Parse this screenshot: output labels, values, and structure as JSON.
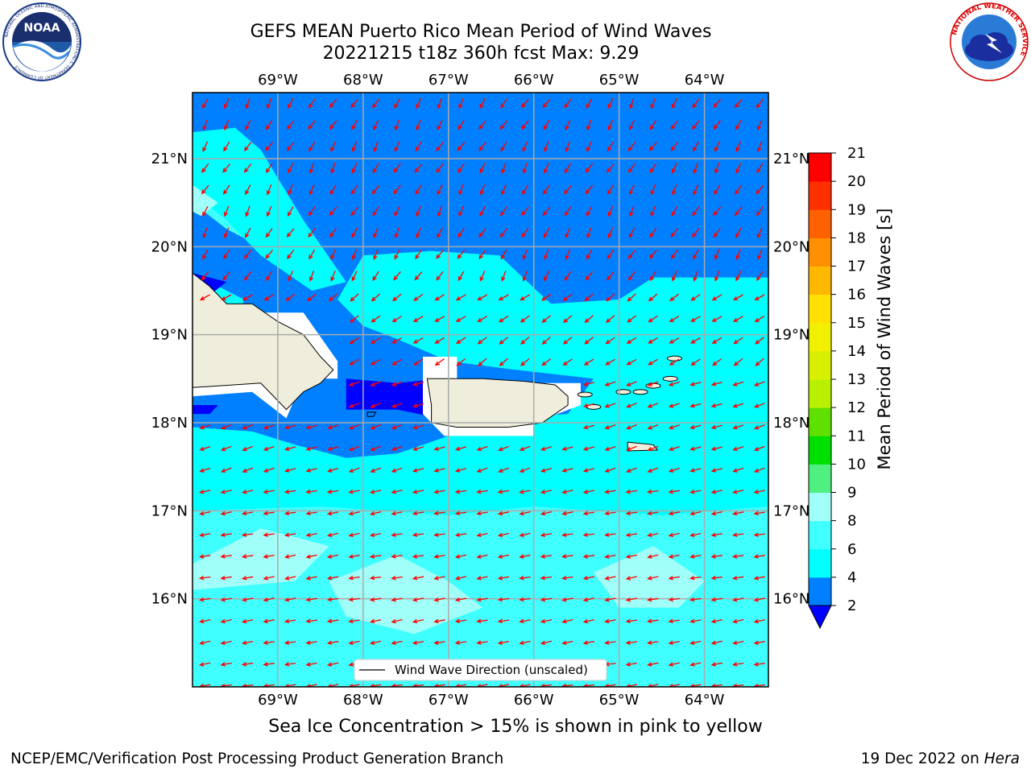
{
  "title": {
    "line1": "GEFS MEAN Puerto Rico Mean Period of Wind Waves",
    "line2": "20221215 t18z 360h fcst   Max: 9.29"
  },
  "logos": {
    "left": "NOAA",
    "left_ring": "NATIONAL OCEANIC AND ATMOSPHERIC ADMINISTRATION",
    "left_bottom": "U.S. DEPARTMENT OF COMMERCE",
    "right_ring": "NATIONAL WEATHER SERVICE"
  },
  "chart_data": {
    "type": "map",
    "lon_range": [
      -70.0,
      -63.25
    ],
    "lat_range": [
      15.0,
      21.75
    ],
    "lon_ticks": [
      "69°W",
      "68°W",
      "67°W",
      "66°W",
      "65°W",
      "64°W"
    ],
    "lat_ticks": [
      "16°N",
      "17°N",
      "18°N",
      "19°N",
      "20°N",
      "21°N"
    ],
    "grid": true,
    "colorbar": {
      "label": "Mean Period of Wind Waves [s]",
      "levels": [
        2,
        4,
        6,
        8,
        9,
        10,
        11,
        12,
        13,
        14,
        15,
        16,
        17,
        18,
        19,
        20,
        21
      ],
      "colors": [
        "#0080ff",
        "#00ffff",
        "#40ffff",
        "#a0fff8",
        "#50f080",
        "#00e000",
        "#60e000",
        "#b8f000",
        "#d8f000",
        "#f0f000",
        "#ffe000",
        "#ffb800",
        "#ff9000",
        "#ff6000",
        "#ff3000",
        "#ff0000"
      ],
      "extend_min_color": "#0000ff"
    },
    "field_regions": [
      {
        "level": "2-4",
        "area": "northern waters above ~19.5°N, west of Puerto Rico and north of Hispaniola"
      },
      {
        "level": "<2",
        "area": "Mona Passage south of ~18.5°N, and pockets near Hispaniola coast"
      },
      {
        "level": "4-6",
        "area": "south of ~18.3°N and east of ~65°W"
      },
      {
        "level": "6-8",
        "area": "southern waters below ~17°N"
      }
    ],
    "vector_legend": "Wind Wave Direction (unscaled)",
    "arrow_color": "#ff0000",
    "land_color": "#efeedc"
  },
  "subtitle": "Sea Ice Concentration > 15% is shown in pink to yellow",
  "footer": {
    "left": "NCEP/EMC/Verification Post Processing Product Generation Branch",
    "date": "19 Dec 2022 on",
    "system": "Hera"
  }
}
